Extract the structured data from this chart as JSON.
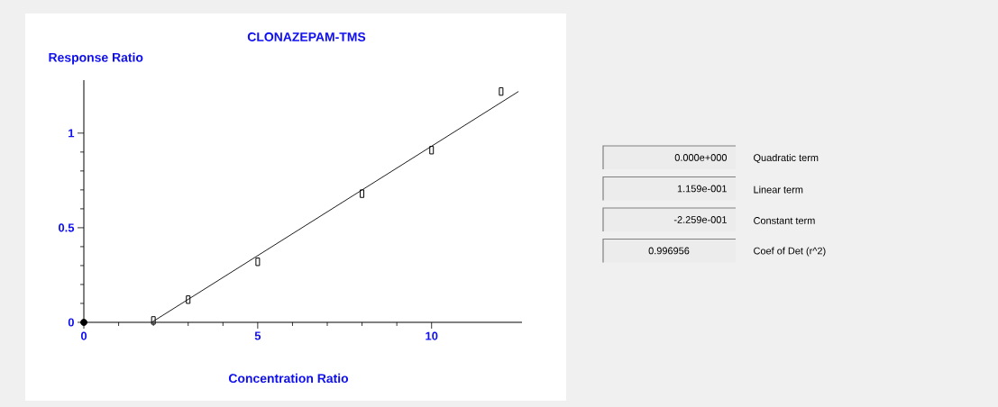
{
  "chart_data": {
    "type": "scatter",
    "title": "CLONAZEPAM-TMS",
    "xlabel": "Concentration Ratio",
    "ylabel": "Response Ratio",
    "xlim": [
      0,
      12.6
    ],
    "ylim": [
      0,
      1.28
    ],
    "xticks": [
      0,
      5,
      10
    ],
    "yticks": [
      0,
      0.5,
      1
    ],
    "grid": false,
    "series": [
      {
        "marker": "square",
        "color": "#000000",
        "x": [
          2,
          3,
          5,
          8,
          10,
          12
        ],
        "values": [
          0.01,
          0.12,
          0.32,
          0.68,
          0.91,
          1.22
        ]
      },
      {
        "marker": "circle",
        "color": "#000000",
        "x": [
          0
        ],
        "values": [
          0
        ]
      },
      {
        "type": "line",
        "marker": "none",
        "color": "#000000",
        "x": [
          1.95,
          12.5
        ],
        "values": [
          0,
          1.22
        ]
      }
    ],
    "annotations": [
      "0.000e+000",
      "Quadratic term",
      "1.159e-001",
      "Linear term",
      "-2.259e-001",
      "Constant term",
      "0.996956",
      "Coef of Det (r^2)"
    ]
  }
}
